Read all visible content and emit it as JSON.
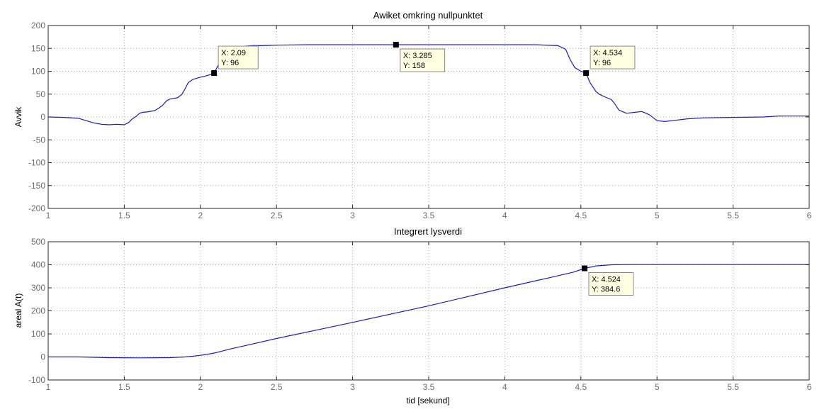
{
  "colors": {
    "line": "#1a1ac8",
    "grid": "#aaaaaa",
    "axis": "#262626",
    "label": "#6b6b6b",
    "datatip_bg": "#ffffe1",
    "datatip_border": "#8a8a8a"
  },
  "chart_data": [
    {
      "type": "line",
      "title": "Awiket omkring nullpunktet",
      "xlabel": "",
      "ylabel": "Avvik",
      "xlim": [
        1,
        6
      ],
      "ylim": [
        -200,
        200
      ],
      "xticks": [
        1,
        1.5,
        2,
        2.5,
        3,
        3.5,
        4,
        4.5,
        5,
        5.5,
        6
      ],
      "xtick_labels": [
        "1",
        "1.5",
        "2",
        "2.5",
        "3",
        "3.5",
        "4",
        "4.5",
        "5",
        "5.5",
        "6"
      ],
      "yticks": [
        -200,
        -150,
        -100,
        -50,
        0,
        50,
        100,
        150,
        200
      ],
      "ytick_labels": [
        "-200",
        "-150",
        "-100",
        "-50",
        "0",
        "50",
        "100",
        "150",
        "200"
      ],
      "grid": true,
      "series": [
        {
          "x": [
            1.0,
            1.1,
            1.2,
            1.25,
            1.3,
            1.35,
            1.4,
            1.45,
            1.5,
            1.53,
            1.55,
            1.58,
            1.6,
            1.62,
            1.65,
            1.7,
            1.72,
            1.75,
            1.78,
            1.8,
            1.85,
            1.88,
            1.9,
            1.92,
            1.95,
            2.0,
            2.05,
            2.09,
            2.12,
            2.15,
            2.18,
            2.2,
            2.25,
            2.3,
            2.35,
            2.4,
            2.5,
            2.7,
            3.0,
            3.285,
            3.5,
            3.8,
            4.0,
            4.2,
            4.35,
            4.4,
            4.43,
            4.46,
            4.5,
            4.534,
            4.56,
            4.6,
            4.62,
            4.65,
            4.7,
            4.72,
            4.75,
            4.8,
            4.85,
            4.9,
            4.95,
            5.0,
            5.05,
            5.1,
            5.2,
            5.3,
            5.5,
            5.7,
            5.8,
            6.0
          ],
          "y": [
            0,
            -1,
            -3,
            -8,
            -13,
            -16,
            -17,
            -16,
            -17,
            -12,
            -5,
            2,
            8,
            10,
            11,
            14,
            18,
            25,
            36,
            39,
            42,
            50,
            62,
            75,
            82,
            87,
            91,
            96,
            115,
            138,
            148,
            152,
            153,
            155,
            156,
            156,
            157,
            158,
            158,
            158,
            158,
            158,
            158,
            158,
            156,
            148,
            125,
            108,
            100,
            96,
            75,
            55,
            50,
            45,
            38,
            30,
            15,
            8,
            10,
            12,
            5,
            -8,
            -10,
            -8,
            -4,
            -2,
            -1,
            0,
            2,
            2
          ]
        }
      ],
      "annotations": [
        {
          "x": 2.09,
          "y": 96,
          "text": [
            "X: 2.09",
            "Y: 96"
          ]
        },
        {
          "x": 3.285,
          "y": 158,
          "text": [
            "X: 3.285",
            "Y: 158"
          ]
        },
        {
          "x": 4.534,
          "y": 96,
          "text": [
            "X: 4.534",
            "Y: 96"
          ]
        }
      ]
    },
    {
      "type": "line",
      "title": "Integrert lysverdi",
      "xlabel": "tid [sekund]",
      "ylabel": "areal A(t)",
      "xlim": [
        1,
        6
      ],
      "ylim": [
        -100,
        500
      ],
      "xticks": [
        1,
        1.5,
        2,
        2.5,
        3,
        3.5,
        4,
        4.5,
        5,
        5.5,
        6
      ],
      "xtick_labels": [
        "1",
        "1.5",
        "2",
        "2.5",
        "3",
        "3.5",
        "4",
        "4.5",
        "5",
        "5.5",
        "6"
      ],
      "yticks": [
        -100,
        0,
        100,
        200,
        300,
        400,
        500
      ],
      "ytick_labels": [
        "-100",
        "0",
        "100",
        "200",
        "300",
        "400",
        "500"
      ],
      "grid": true,
      "series": [
        {
          "x": [
            1.0,
            1.2,
            1.4,
            1.6,
            1.8,
            1.9,
            1.95,
            2.0,
            2.05,
            2.1,
            2.2,
            2.3,
            2.5,
            2.8,
            3.0,
            3.5,
            4.0,
            4.3,
            4.45,
            4.524,
            4.6,
            4.7,
            4.8,
            5.0,
            5.5,
            6.0
          ],
          "y": [
            0,
            0,
            -3,
            -4,
            -3,
            0,
            3,
            7,
            12,
            18,
            35,
            50,
            80,
            122,
            150,
            222,
            300,
            345,
            368,
            384.6,
            395,
            400,
            401,
            401,
            401,
            401
          ]
        }
      ],
      "annotations": [
        {
          "x": 4.524,
          "y": 384.6,
          "text": [
            "X: 4.524",
            "Y: 384.6"
          ]
        }
      ]
    }
  ]
}
